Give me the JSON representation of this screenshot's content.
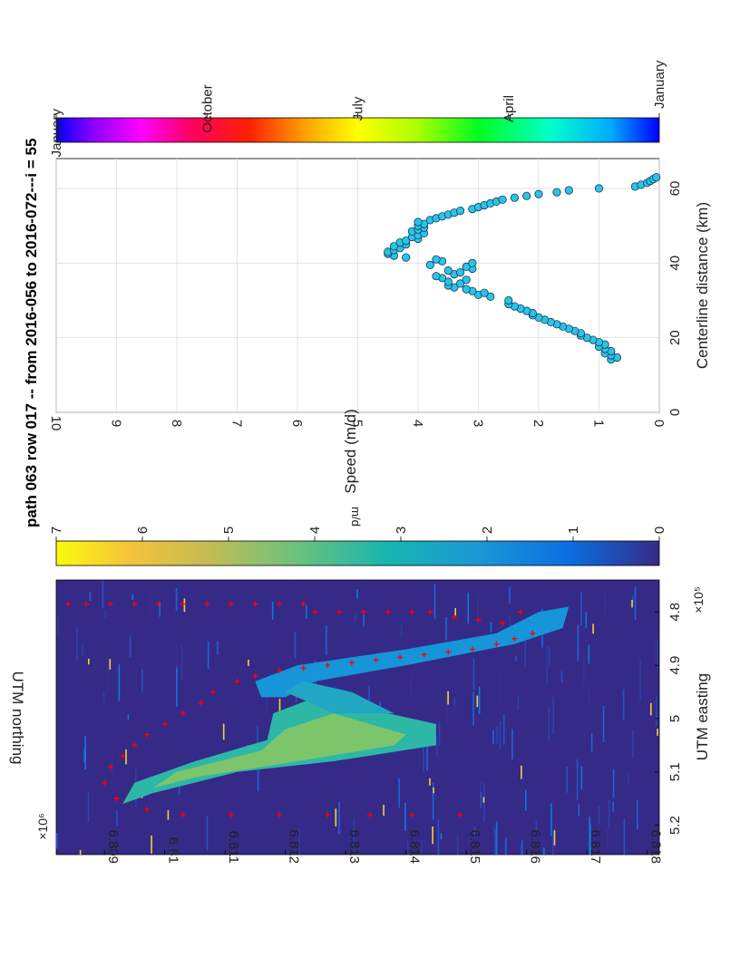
{
  "title": "path 063 row 017 -- from 2016-056 to 2016-072---i = 55",
  "chart_data": [
    {
      "type": "heatmap",
      "xlabel": "UTM easting",
      "x_exponent_label": "×10⁵",
      "ylabel": "UTM northing",
      "y_exponent_label": "×10⁶",
      "xlim": [
        4.74,
        5.255
      ],
      "ylim": [
        6.8082,
        6.8182
      ],
      "x_ticks": [
        "4.8",
        "4.9",
        "5",
        "5.1",
        "5.2"
      ],
      "y_ticks": [
        "6.809",
        "6.81",
        "6.811",
        "6.812",
        "6.813",
        "6.814",
        "6.815",
        "6.816",
        "6.817",
        "6.818"
      ],
      "colorbar": {
        "label": "m/d",
        "range": [
          0,
          7
        ],
        "ticks": [
          "0",
          "1",
          "2",
          "3",
          "4",
          "5",
          "6",
          "7"
        ]
      },
      "markers": {
        "symbol": "+",
        "color": "#ff0000",
        "description": "centerline points"
      },
      "centerline_points": [
        [
          4.785,
          6.8084
        ],
        [
          4.785,
          6.8087
        ],
        [
          4.785,
          6.8091
        ],
        [
          4.785,
          6.8095
        ],
        [
          4.785,
          6.8099
        ],
        [
          4.785,
          6.8103
        ],
        [
          4.785,
          6.8107
        ],
        [
          4.785,
          6.8111
        ],
        [
          4.785,
          6.8115
        ],
        [
          4.785,
          6.8119
        ],
        [
          4.785,
          6.8123
        ],
        [
          4.8,
          6.8125
        ],
        [
          4.8,
          6.8129
        ],
        [
          4.8,
          6.8133
        ],
        [
          4.8,
          6.8137
        ],
        [
          4.8,
          6.8141
        ],
        [
          4.8,
          6.8144
        ],
        [
          4.81,
          6.8148
        ],
        [
          4.815,
          6.8152
        ],
        [
          4.82,
          6.8156
        ],
        [
          4.8,
          6.8159
        ],
        [
          4.84,
          6.8161
        ],
        [
          4.85,
          6.8158
        ],
        [
          4.86,
          6.8155
        ],
        [
          4.87,
          6.8151
        ],
        [
          4.875,
          6.8147
        ],
        [
          4.88,
          6.8143
        ],
        [
          4.885,
          6.8139
        ],
        [
          4.89,
          6.8135
        ],
        [
          4.895,
          6.8131
        ],
        [
          4.9,
          6.8127
        ],
        [
          4.905,
          6.8123
        ],
        [
          4.91,
          6.8119
        ],
        [
          4.92,
          6.8115
        ],
        [
          4.93,
          6.8112
        ],
        [
          4.95,
          6.8108
        ],
        [
          4.97,
          6.8106
        ],
        [
          4.99,
          6.8103
        ],
        [
          5.01,
          6.81
        ],
        [
          5.03,
          6.8097
        ],
        [
          5.05,
          6.8095
        ],
        [
          5.07,
          6.8093
        ],
        [
          5.09,
          6.8091
        ],
        [
          5.12,
          6.809
        ],
        [
          5.15,
          6.8092
        ],
        [
          5.17,
          6.8097
        ],
        [
          5.18,
          6.8103
        ],
        [
          5.18,
          6.8111
        ],
        [
          5.18,
          6.8119
        ],
        [
          5.18,
          6.8127
        ],
        [
          5.18,
          6.8134
        ],
        [
          5.18,
          6.8141
        ],
        [
          5.18,
          6.8149
        ]
      ]
    },
    {
      "type": "scatter",
      "xlabel": "Centerline distance (km)",
      "ylabel": "Speed (m/d)",
      "xlim": [
        0,
        68
      ],
      "ylim": [
        0,
        10
      ],
      "x_ticks": [
        "0",
        "20",
        "40",
        "60"
      ],
      "y_ticks": [
        "0",
        "1",
        "2",
        "3",
        "4",
        "5",
        "6",
        "7",
        "8",
        "9",
        "10"
      ],
      "grid": true,
      "marker_color": "#29c4e8",
      "x": [
        14.2,
        14.7,
        15.3,
        15.8,
        16.4,
        17.0,
        17.6,
        18.2,
        18.8,
        19.4,
        20.0,
        20.6,
        21.2,
        21.8,
        22.4,
        23.0,
        23.6,
        24.2,
        24.8,
        25.4,
        26.0,
        26.6,
        27.2,
        27.8,
        28.4,
        29.0,
        30.0,
        31.0,
        31.5,
        32.0,
        32.5,
        33.0,
        33.5,
        34.0,
        34.5,
        35.0,
        35.5,
        36.0,
        36.5,
        37.0,
        37.5,
        38.0,
        38.5,
        39.0,
        39.5,
        40.0,
        40.5,
        41.0,
        41.5,
        42.0,
        42.5,
        43.0,
        43.5,
        44.0,
        44.5,
        45.0,
        45.5,
        46.0,
        46.5,
        47.0,
        47.5,
        48.0,
        48.5,
        49.0,
        49.5,
        50.0,
        50.5,
        51.0,
        51.5,
        52.0,
        52.5,
        53.0,
        53.5,
        54.0,
        54.5,
        55.0,
        55.5,
        56.0,
        56.5,
        57.0,
        57.5,
        58.0,
        58.5,
        59.0,
        59.5,
        60.0,
        60.5,
        61.0,
        61.5,
        62.0,
        62.5,
        63.0
      ],
      "y": [
        0.8,
        0.7,
        0.8,
        0.9,
        0.8,
        0.9,
        1.0,
        0.9,
        1.0,
        1.1,
        1.2,
        1.3,
        1.3,
        1.4,
        1.5,
        1.6,
        1.7,
        1.8,
        1.9,
        2.0,
        2.1,
        2.1,
        2.2,
        2.3,
        2.4,
        2.5,
        2.5,
        2.8,
        3.0,
        2.9,
        3.1,
        3.2,
        3.4,
        3.5,
        3.3,
        3.5,
        3.2,
        3.6,
        3.7,
        3.4,
        3.3,
        3.5,
        3.1,
        3.2,
        3.8,
        3.1,
        3.6,
        3.7,
        4.2,
        4.4,
        4.5,
        4.5,
        4.4,
        4.3,
        4.4,
        4.2,
        4.3,
        4.2,
        4.0,
        4.1,
        4.0,
        3.9,
        4.1,
        4.0,
        3.9,
        4.0,
        3.9,
        4.0,
        3.8,
        3.7,
        3.6,
        3.5,
        3.4,
        3.3,
        3.1,
        3.0,
        2.9,
        2.8,
        2.7,
        2.6,
        2.4,
        2.2,
        2.0,
        1.7,
        1.5,
        1.0,
        0.4,
        0.3,
        0.2,
        0.15,
        0.1,
        0.05
      ]
    }
  ],
  "date_colorbar": {
    "tick_labels": [
      "January",
      "April",
      "July",
      "October",
      "January"
    ],
    "colors": [
      "#0000ff",
      "#00c0ff",
      "#00ffc0",
      "#00ff00",
      "#c0ff00",
      "#ffff00",
      "#ffa000",
      "#ff4000",
      "#ff0000",
      "#ff0080",
      "#ff00ff",
      "#8000ff",
      "#0000ff"
    ]
  },
  "colors": {
    "heatmap_bg": "#352a87",
    "marker": "#ff0000"
  }
}
